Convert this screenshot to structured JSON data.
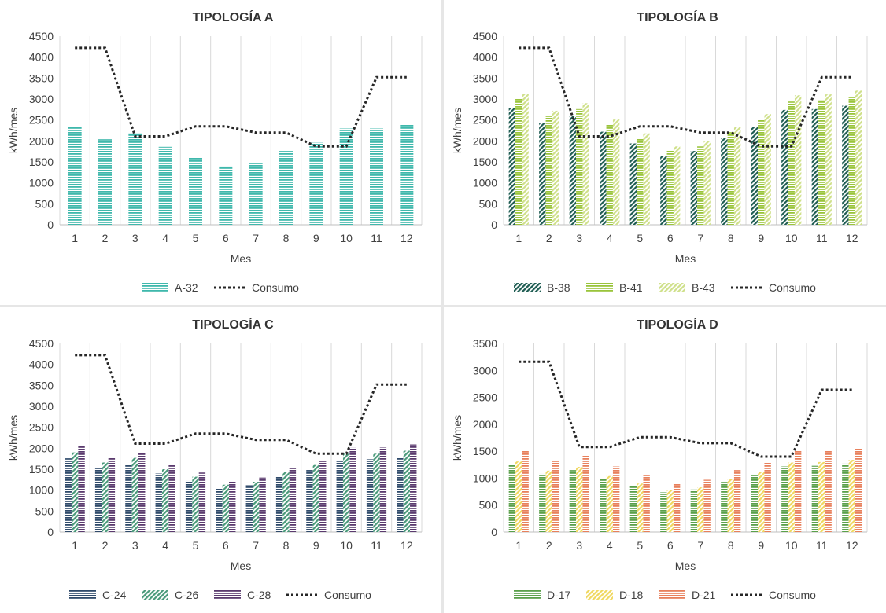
{
  "chart_data": [
    {
      "type": "bar",
      "title": "TIPOLOGÍA A",
      "xlabel": "Mes",
      "ylabel": "kWh/mes",
      "ylim": [
        0,
        4500
      ],
      "ytick_step": 500,
      "categories": [
        "1",
        "2",
        "3",
        "4",
        "5",
        "6",
        "7",
        "8",
        "9",
        "10",
        "11",
        "12"
      ],
      "series": [
        {
          "name": "A-32",
          "kind": "bar",
          "color": "#3fb8ac",
          "pattern": "hlines",
          "values": [
            2340,
            2040,
            2180,
            1860,
            1610,
            1390,
            1480,
            1760,
            1960,
            2300,
            2300,
            2390
          ]
        }
      ],
      "line": {
        "name": "Consumo",
        "color": "#262626",
        "values": [
          4220,
          4220,
          2110,
          2110,
          2350,
          2350,
          2200,
          2200,
          1870,
          1870,
          3520,
          3520
        ]
      }
    },
    {
      "type": "bar",
      "title": "TIPOLOGÍA B",
      "xlabel": "Mes",
      "ylabel": "kWh/mes",
      "ylim": [
        0,
        4500
      ],
      "ytick_step": 500,
      "categories": [
        "1",
        "2",
        "3",
        "4",
        "5",
        "6",
        "7",
        "8",
        "9",
        "10",
        "11",
        "12"
      ],
      "series": [
        {
          "name": "B-38",
          "kind": "bar",
          "color": "#1e5c52",
          "pattern": "diag",
          "values": [
            2780,
            2420,
            2590,
            2220,
            1940,
            1650,
            1760,
            2080,
            2330,
            2740,
            2760,
            2840
          ]
        },
        {
          "name": "B-41",
          "kind": "bar",
          "color": "#9ac43c",
          "pattern": "hlines",
          "values": [
            3000,
            2600,
            2760,
            2390,
            2060,
            1780,
            1870,
            2210,
            2520,
            2940,
            2970,
            3050
          ]
        },
        {
          "name": "B-43",
          "kind": "bar",
          "color": "#cfe08a",
          "pattern": "diag",
          "values": [
            3130,
            2720,
            2900,
            2510,
            2180,
            1870,
            1990,
            2340,
            2640,
            3090,
            3110,
            3200
          ]
        }
      ],
      "line": {
        "name": "Consumo",
        "color": "#262626",
        "values": [
          4220,
          4220,
          2110,
          2110,
          2350,
          2350,
          2200,
          2200,
          1870,
          1870,
          3520,
          3520
        ]
      }
    },
    {
      "type": "bar",
      "title": "TIPOLOGÍA C",
      "xlabel": "Mes",
      "ylabel": "kWh/mes",
      "ylim": [
        0,
        4500
      ],
      "ytick_step": 500,
      "categories": [
        "1",
        "2",
        "3",
        "4",
        "5",
        "6",
        "7",
        "8",
        "9",
        "10",
        "11",
        "12"
      ],
      "series": [
        {
          "name": "C-24",
          "kind": "bar",
          "color": "#2f4a6a",
          "pattern": "hlines",
          "values": [
            1760,
            1530,
            1630,
            1400,
            1220,
            1040,
            1120,
            1320,
            1480,
            1720,
            1740,
            1790
          ]
        },
        {
          "name": "C-26",
          "kind": "bar",
          "color": "#4a9a7a",
          "pattern": "diag",
          "values": [
            1900,
            1660,
            1770,
            1500,
            1320,
            1130,
            1200,
            1430,
            1600,
            1870,
            1870,
            1940
          ]
        },
        {
          "name": "C-28",
          "kind": "bar",
          "color": "#5a3a6e",
          "pattern": "hlines",
          "values": [
            2050,
            1770,
            1890,
            1630,
            1420,
            1210,
            1300,
            1550,
            1720,
            2010,
            2020,
            2090
          ]
        }
      ],
      "line": {
        "name": "Consumo",
        "color": "#262626",
        "values": [
          4220,
          4220,
          2110,
          2110,
          2350,
          2350,
          2200,
          2200,
          1870,
          1870,
          3520,
          3520
        ]
      }
    },
    {
      "type": "bar",
      "title": "TIPOLOGÍA D",
      "xlabel": "Mes",
      "ylabel": "kWh/mes",
      "ylim": [
        0,
        3500
      ],
      "ytick_step": 500,
      "categories": [
        "1",
        "2",
        "3",
        "4",
        "5",
        "6",
        "7",
        "8",
        "9",
        "10",
        "11",
        "12"
      ],
      "series": [
        {
          "name": "D-17",
          "kind": "bar",
          "color": "#5aa04a",
          "pattern": "hlines",
          "values": [
            1240,
            1080,
            1150,
            990,
            860,
            740,
            790,
            930,
            1050,
            1220,
            1230,
            1270
          ]
        },
        {
          "name": "D-18",
          "kind": "bar",
          "color": "#f0d860",
          "pattern": "diag",
          "values": [
            1310,
            1140,
            1210,
            1040,
            900,
            780,
            830,
            990,
            1110,
            1290,
            1300,
            1340
          ]
        },
        {
          "name": "D-21",
          "kind": "bar",
          "color": "#e8805c",
          "pattern": "hlines",
          "values": [
            1530,
            1320,
            1420,
            1220,
            1060,
            910,
            970,
            1150,
            1290,
            1510,
            1520,
            1560
          ]
        }
      ],
      "line": {
        "name": "Consumo",
        "color": "#262626",
        "values": [
          3160,
          3160,
          1580,
          1580,
          1760,
          1760,
          1650,
          1650,
          1400,
          1400,
          2640,
          2640
        ]
      }
    }
  ]
}
